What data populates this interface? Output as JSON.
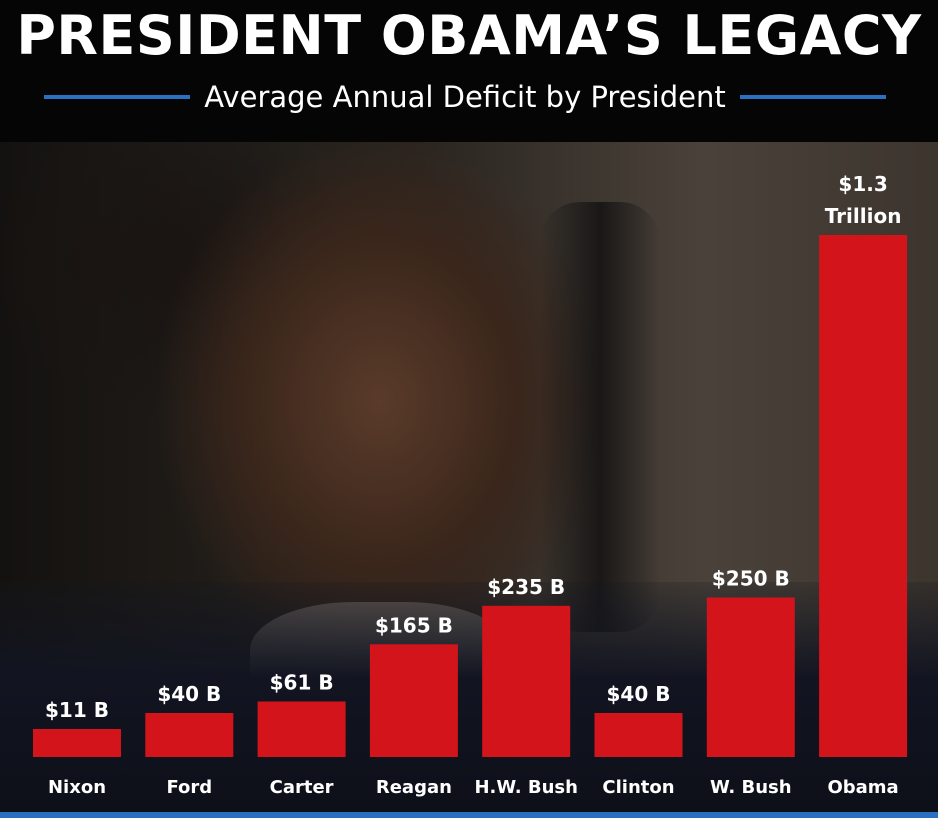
{
  "header": {
    "title": "PRESIDENT OBAMA’S LEGACY",
    "subtitle": "Average Annual Deficit by President"
  },
  "colors": {
    "bar": "#d3151b",
    "accent_rule": "#2a6fc0",
    "text": "#ffffff"
  },
  "chart_data": {
    "type": "bar",
    "title": "PRESIDENT OBAMA’S LEGACY",
    "subtitle": "Average Annual Deficit by President",
    "categories": [
      "Nixon",
      "Ford",
      "Carter",
      "Reagan",
      "H.W. Bush",
      "Clinton",
      "W. Bush",
      "Obama"
    ],
    "values": [
      11,
      40,
      61,
      165,
      235,
      40,
      250,
      1300
    ],
    "value_unit": "billion USD",
    "data_labels": [
      [
        "$11 B"
      ],
      [
        "$40 B"
      ],
      [
        "$61 B"
      ],
      [
        "$165 B"
      ],
      [
        "$235 B"
      ],
      [
        "$40 B"
      ],
      [
        "$250 B"
      ],
      [
        "$1.3",
        "Trillion"
      ]
    ],
    "xlabel": "",
    "ylabel": "",
    "grid": false,
    "legend": "none"
  }
}
